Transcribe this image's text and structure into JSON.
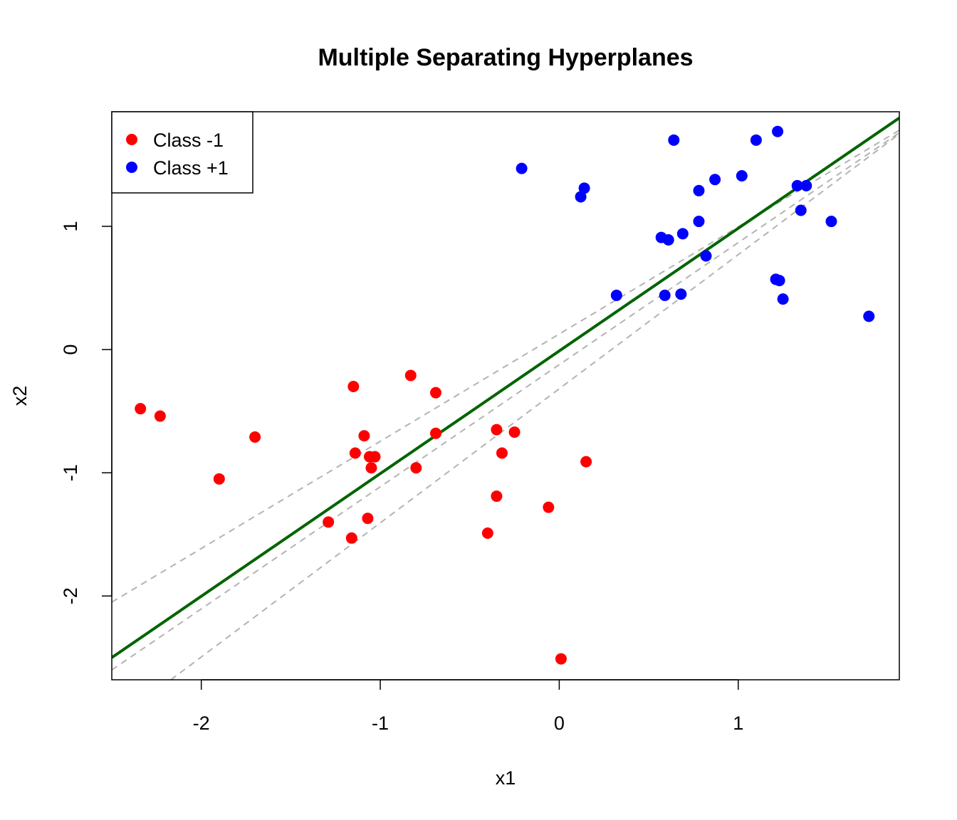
{
  "chart_data": {
    "type": "scatter",
    "title": "Multiple Separating Hyperplanes",
    "xlabel": "x1",
    "ylabel": "x2",
    "xlim": [
      -2.5,
      1.9
    ],
    "ylim": [
      -2.68,
      1.93
    ],
    "x_ticks": [
      -2,
      -1,
      0,
      1
    ],
    "y_ticks": [
      -2,
      -1,
      0,
      1
    ],
    "x_tick_labels": [
      "-2",
      "-1",
      "0",
      "1"
    ],
    "y_tick_labels": [
      "-2",
      "-1",
      "0",
      "1"
    ],
    "grid": false,
    "legend": {
      "position": "top-left",
      "entries": [
        {
          "label": "Class -1",
          "color": "#ff0000"
        },
        {
          "label": "Class +1",
          "color": "#0000ff"
        }
      ]
    },
    "series": [
      {
        "name": "Class -1",
        "color": "#ff0000",
        "points": [
          [
            -2.34,
            -0.48
          ],
          [
            -2.23,
            -0.54
          ],
          [
            -1.9,
            -1.05
          ],
          [
            -1.7,
            -0.71
          ],
          [
            -1.29,
            -1.4
          ],
          [
            -1.15,
            -0.3
          ],
          [
            -1.14,
            -0.84
          ],
          [
            -1.16,
            -1.53
          ],
          [
            -1.09,
            -0.7
          ],
          [
            -1.07,
            -1.37
          ],
          [
            -1.06,
            -0.87
          ],
          [
            -1.05,
            -0.96
          ],
          [
            -1.03,
            -0.87
          ],
          [
            -0.83,
            -0.21
          ],
          [
            -0.8,
            -0.96
          ],
          [
            -0.69,
            -0.35
          ],
          [
            -0.69,
            -0.68
          ],
          [
            -0.4,
            -1.49
          ],
          [
            -0.35,
            -0.65
          ],
          [
            -0.35,
            -1.19
          ],
          [
            -0.32,
            -0.84
          ],
          [
            -0.25,
            -0.67
          ],
          [
            -0.06,
            -1.28
          ],
          [
            0.01,
            -2.51
          ],
          [
            0.15,
            -0.91
          ]
        ]
      },
      {
        "name": "Class +1",
        "color": "#0000ff",
        "points": [
          [
            -0.21,
            1.47
          ],
          [
            0.12,
            1.24
          ],
          [
            0.14,
            1.31
          ],
          [
            0.32,
            0.44
          ],
          [
            0.57,
            0.91
          ],
          [
            0.59,
            0.44
          ],
          [
            0.61,
            0.89
          ],
          [
            0.64,
            1.7
          ],
          [
            0.69,
            0.94
          ],
          [
            0.68,
            0.45
          ],
          [
            0.78,
            1.04
          ],
          [
            0.78,
            1.29
          ],
          [
            0.82,
            0.76
          ],
          [
            0.87,
            1.38
          ],
          [
            1.02,
            1.41
          ],
          [
            1.1,
            1.7
          ],
          [
            1.21,
            0.57
          ],
          [
            1.22,
            1.77
          ],
          [
            1.23,
            0.56
          ],
          [
            1.25,
            0.41
          ],
          [
            1.33,
            1.33
          ],
          [
            1.35,
            1.13
          ],
          [
            1.38,
            1.33
          ],
          [
            1.52,
            1.04
          ],
          [
            1.73,
            0.27
          ]
        ]
      }
    ],
    "lines": [
      {
        "role": "main",
        "color": "#006400",
        "style": "solid",
        "p1": [
          -2.5,
          -2.5
        ],
        "p2": [
          1.9,
          1.88
        ]
      },
      {
        "role": "alternative",
        "color": "#b3b3b3",
        "style": "dashed",
        "p1": [
          -2.5,
          -2.05
        ],
        "p2": [
          1.9,
          1.78
        ]
      },
      {
        "role": "alternative",
        "color": "#b3b3b3",
        "style": "dashed",
        "p1": [
          -2.5,
          -2.6
        ],
        "p2": [
          1.9,
          1.76
        ]
      },
      {
        "role": "alternative",
        "color": "#b3b3b3",
        "style": "dashed",
        "p1": [
          -2.17,
          -2.68
        ],
        "p2": [
          1.9,
          1.75
        ]
      }
    ]
  }
}
